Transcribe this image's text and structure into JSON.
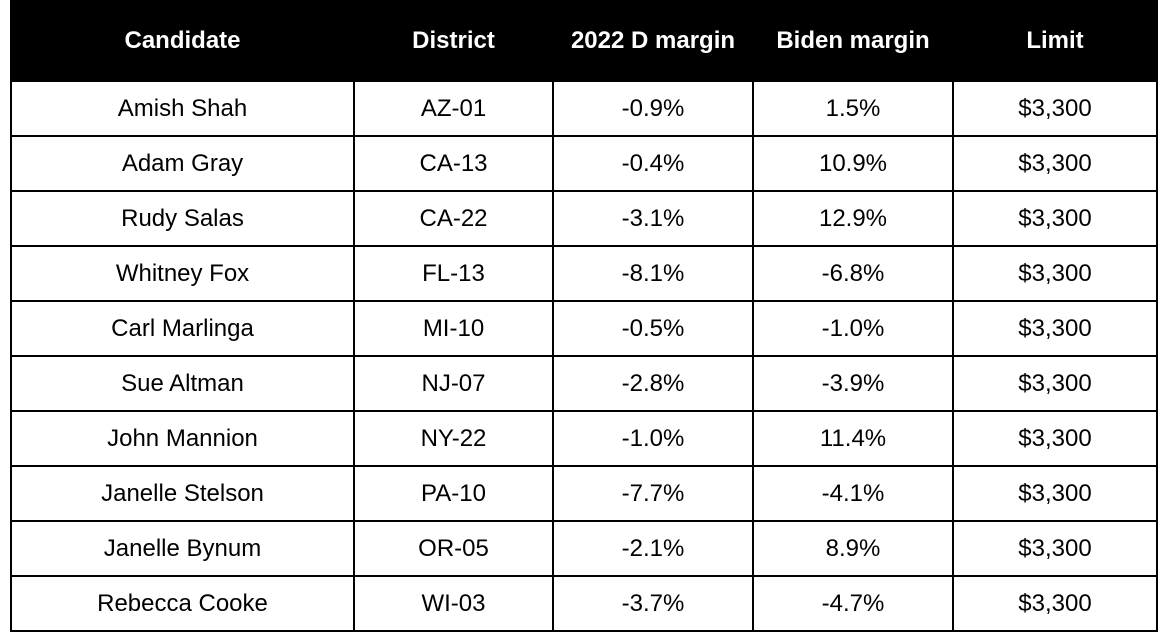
{
  "table": {
    "headers": [
      "Candidate",
      "District",
      "2022 D margin",
      "Biden margin",
      "Limit"
    ],
    "rows": [
      [
        "Amish Shah",
        "AZ-01",
        "-0.9%",
        "1.5%",
        "$3,300"
      ],
      [
        "Adam Gray",
        "CA-13",
        "-0.4%",
        "10.9%",
        "$3,300"
      ],
      [
        "Rudy Salas",
        "CA-22",
        "-3.1%",
        "12.9%",
        "$3,300"
      ],
      [
        "Whitney Fox",
        "FL-13",
        "-8.1%",
        "-6.8%",
        "$3,300"
      ],
      [
        "Carl Marlinga",
        "MI-10",
        "-0.5%",
        "-1.0%",
        "$3,300"
      ],
      [
        "Sue Altman",
        "NJ-07",
        "-2.8%",
        "-3.9%",
        "$3,300"
      ],
      [
        "John Mannion",
        "NY-22",
        "-1.0%",
        "11.4%",
        "$3,300"
      ],
      [
        "Janelle Stelson",
        "PA-10",
        "-7.7%",
        "-4.1%",
        "$3,300"
      ],
      [
        "Janelle Bynum",
        "OR-05",
        "-2.1%",
        "8.9%",
        "$3,300"
      ],
      [
        "Rebecca Cooke",
        "WI-03",
        "-3.7%",
        "-4.7%",
        "$3,300"
      ]
    ]
  },
  "colors": {
    "header_background": "#000000",
    "header_text": "#ffffff",
    "cell_text": "#000000",
    "border": "#000000"
  }
}
